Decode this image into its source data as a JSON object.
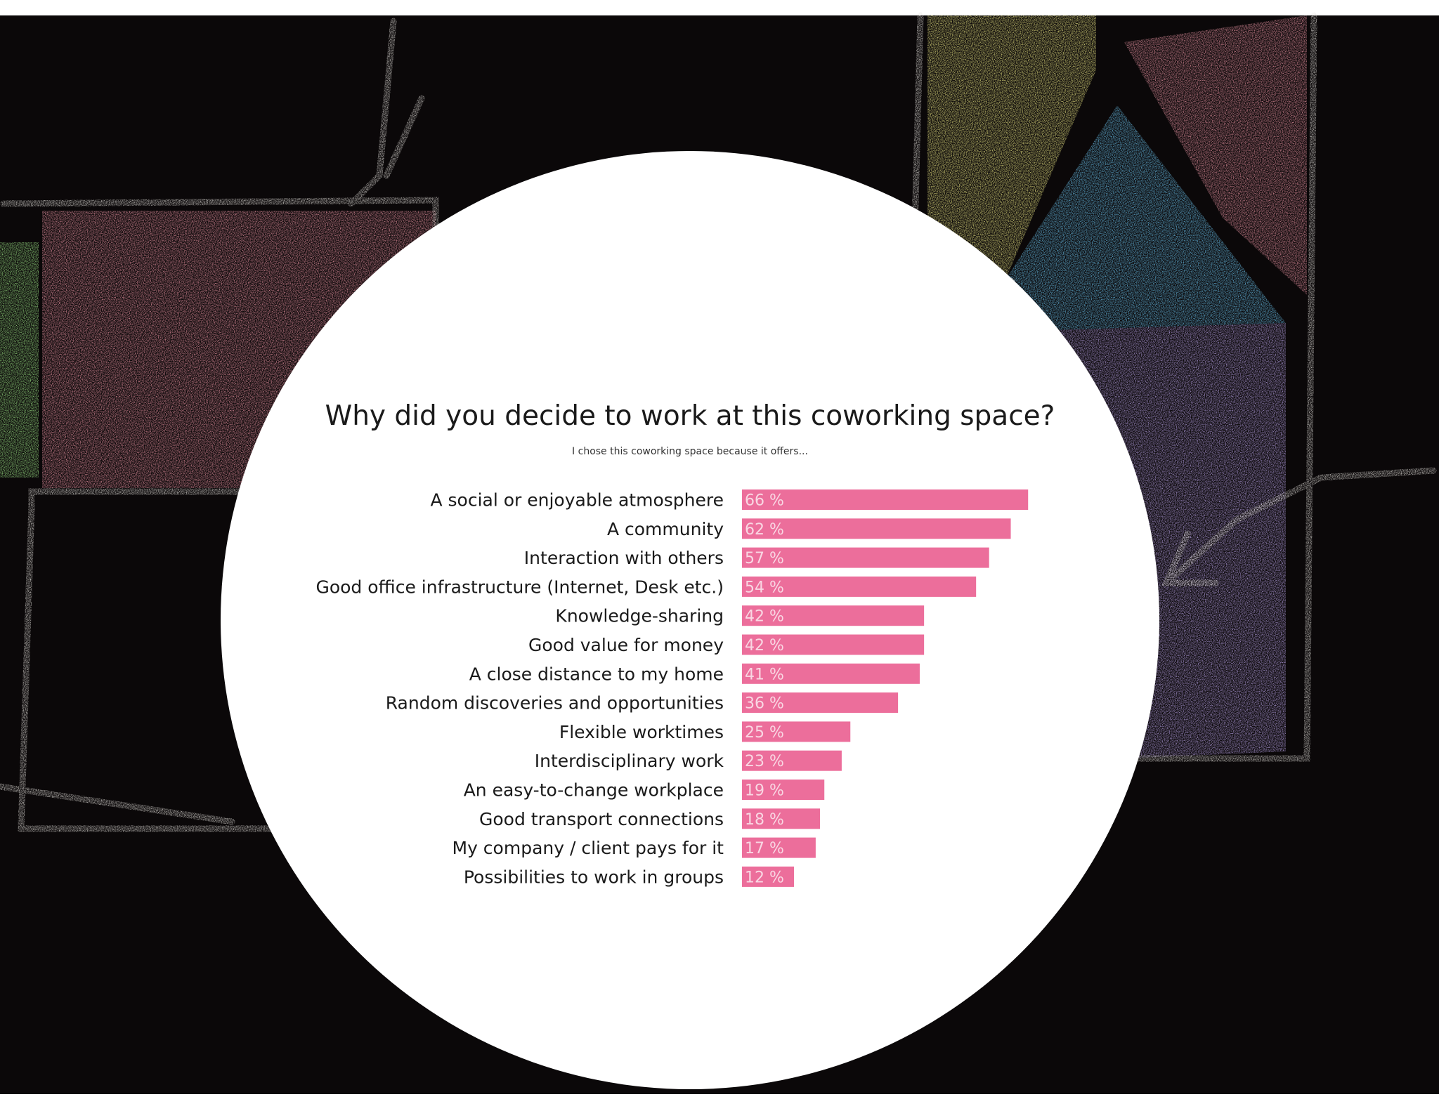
{
  "colors": {
    "bar": "#ec6e9b",
    "value_text": "#f9d7e3",
    "label_text": "#1a1a1a",
    "title_text": "#1a1a1a",
    "circle": "#ffffff",
    "board": "#0b0809",
    "chalk_pink": "#d98997",
    "chalk_yellow": "#d9d57a",
    "chalk_blue": "#62b3da",
    "chalk_lavender": "#a995d3",
    "chalk_green": "#8fd07a",
    "chalk_white": "#e4e1dc"
  },
  "chart_data": {
    "type": "bar",
    "orientation": "horizontal",
    "title": "Why did you decide to work at this coworking space?",
    "subtitle": "I chose this coworking space because it offers...",
    "unit": "%",
    "categories": [
      "A social or enjoyable atmosphere",
      "A community",
      "Interaction with others",
      "Good office infrastructure (Internet, Desk etc.)",
      "Knowledge-sharing",
      "Good value for money",
      "A close distance to my home",
      "Random discoveries and opportunities",
      "Flexible worktimes",
      "Interdisciplinary work",
      "An easy-to-change workplace",
      "Good transport connections",
      "My company / client pays for it",
      "Possibilities to work in groups"
    ],
    "values": [
      66,
      62,
      57,
      54,
      42,
      42,
      41,
      36,
      25,
      23,
      19,
      18,
      17,
      12
    ],
    "value_labels": [
      "66 %",
      "62 %",
      "57 %",
      "54 %",
      "42 %",
      "42 %",
      "41 %",
      "36 %",
      "25 %",
      "23 %",
      "19 %",
      "18 %",
      "17 %",
      "12 %"
    ],
    "xlim": [
      0,
      100
    ],
    "grid": false,
    "legend": "none"
  }
}
